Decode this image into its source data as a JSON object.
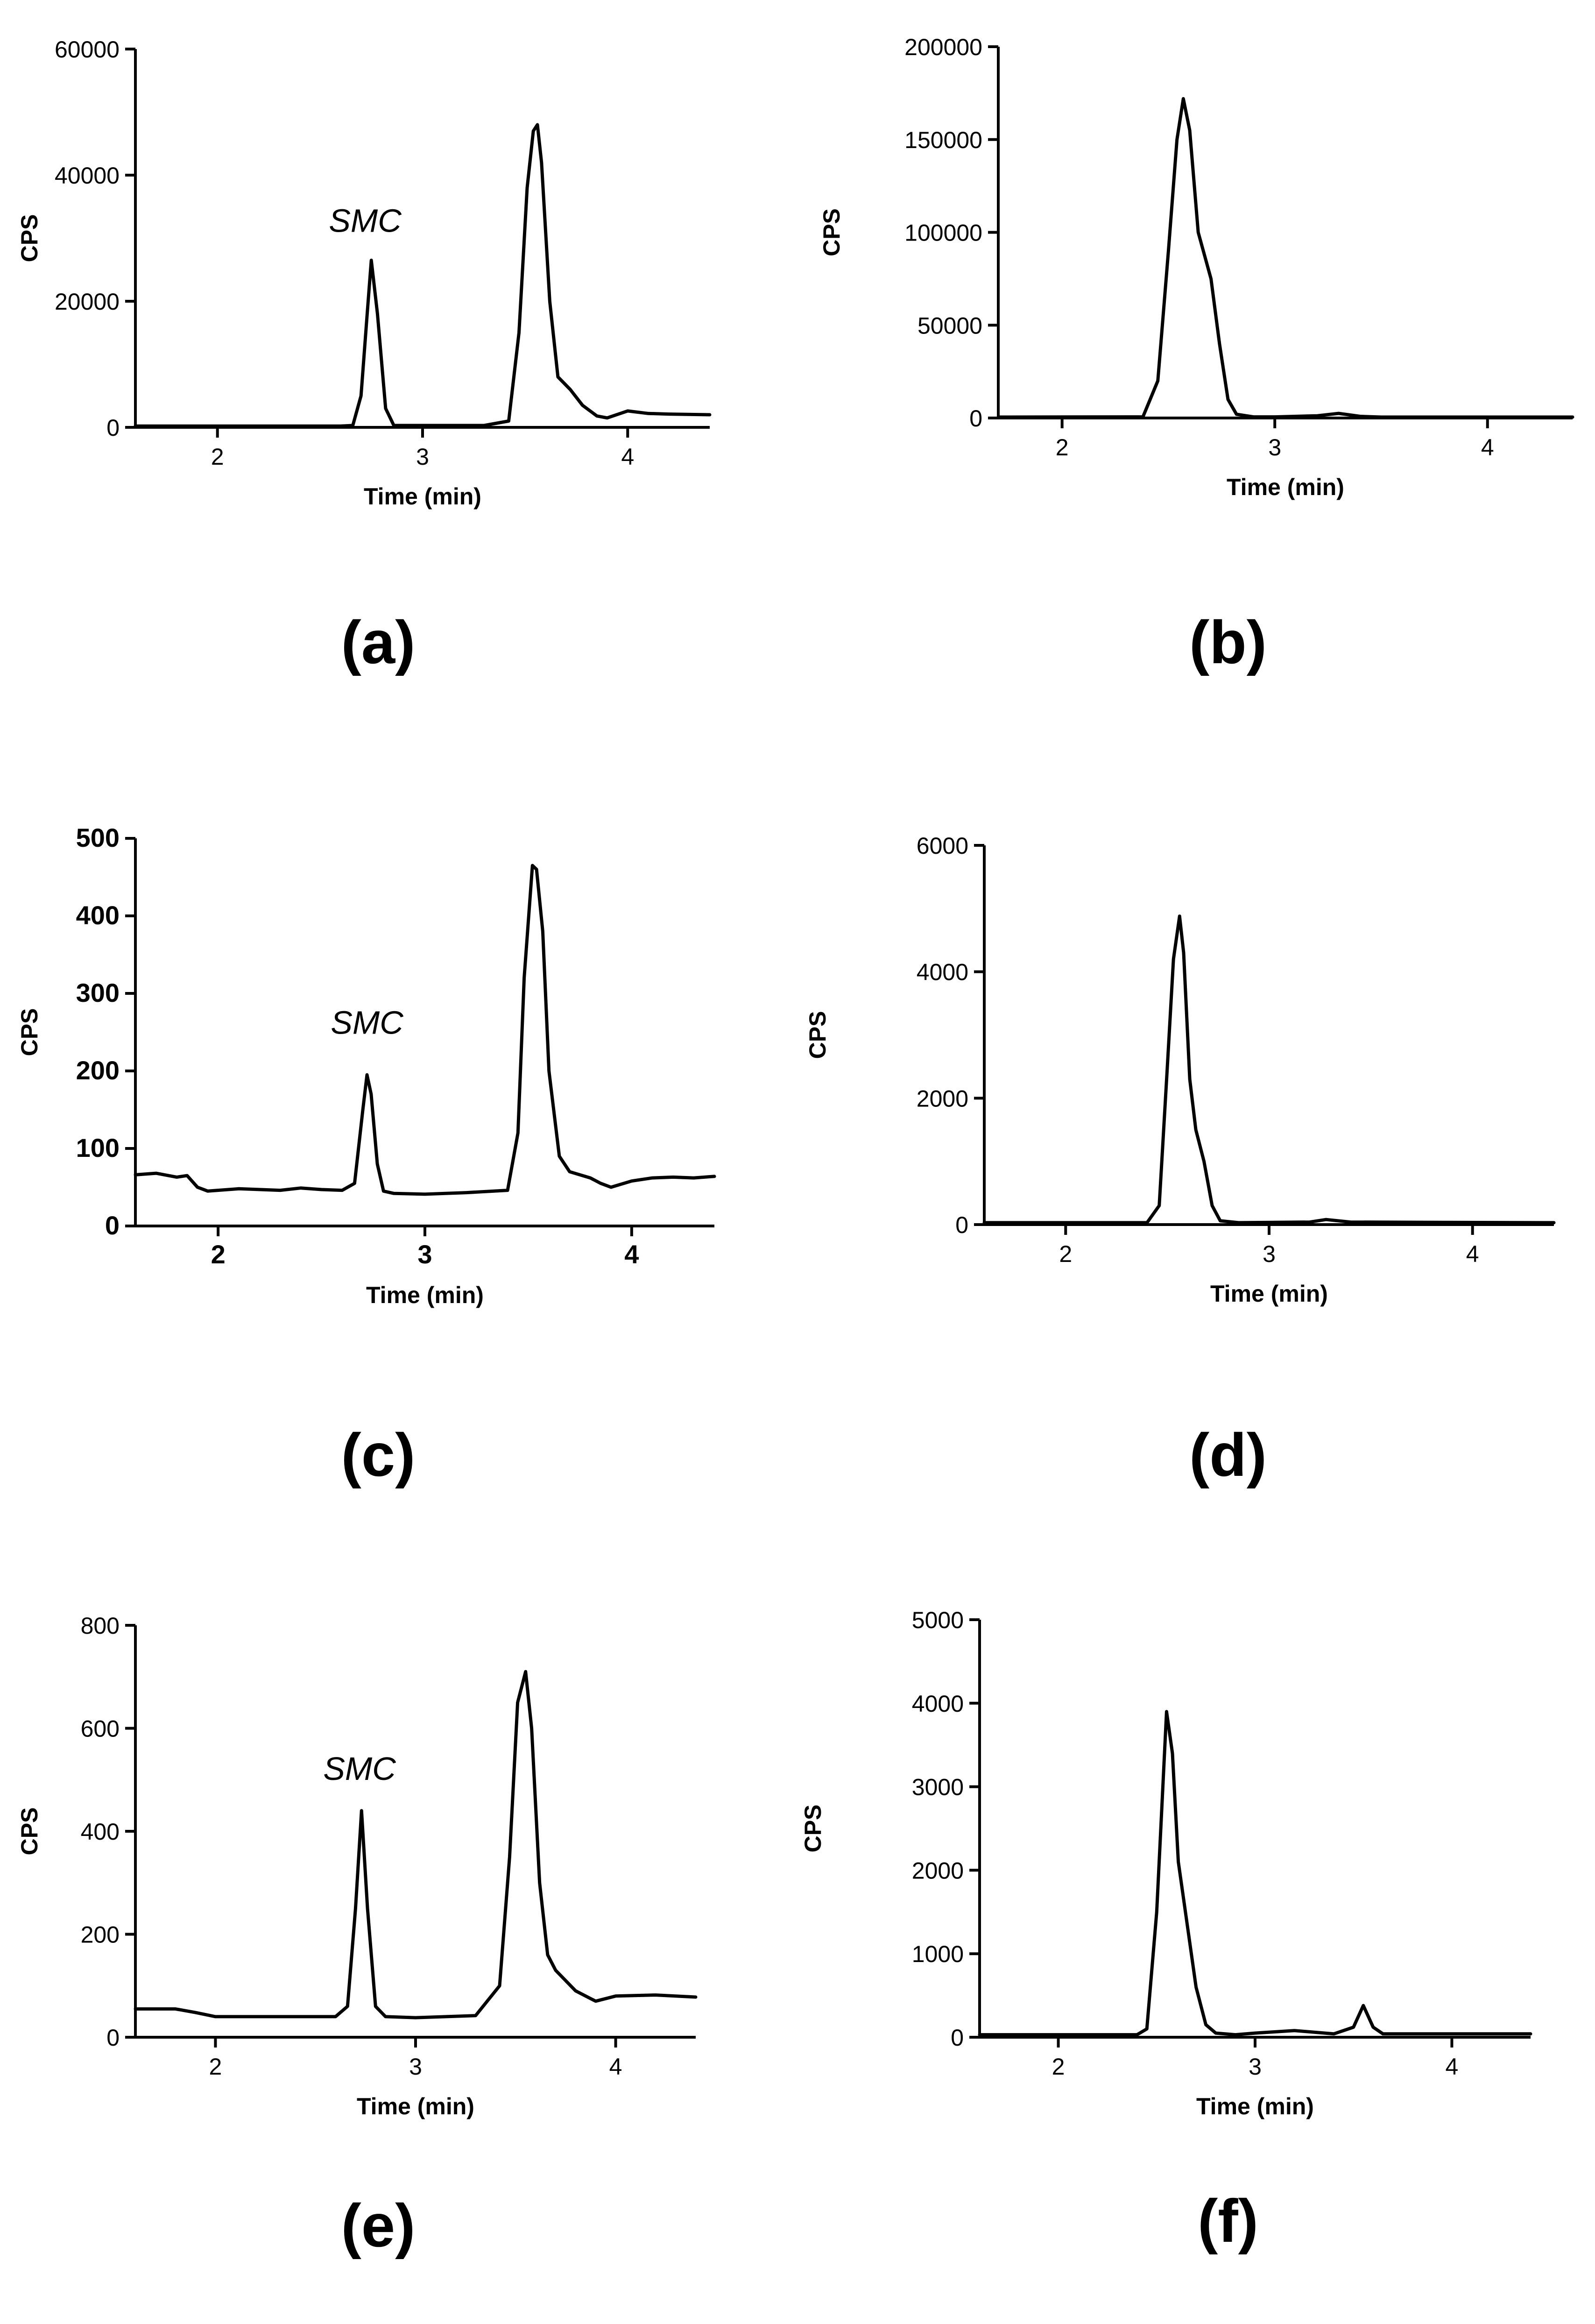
{
  "chart_data": [
    {
      "type": "line",
      "panel": "(a)",
      "xlabel": "Time (min)",
      "ylabel": "CPS",
      "xlim": [
        1.6,
        4.4
      ],
      "ylim": [
        0,
        60000
      ],
      "xticks": [
        "2",
        "3",
        "4"
      ],
      "yticks": [
        "0",
        "20000",
        "40000",
        "60000"
      ],
      "annotations": [
        {
          "text": "SMC",
          "x": 2.72,
          "y": 31000
        }
      ],
      "series": [
        {
          "name": "trace",
          "x": [
            1.6,
            2.6,
            2.66,
            2.7,
            2.73,
            2.75,
            2.78,
            2.82,
            2.86,
            3.3,
            3.42,
            3.47,
            3.51,
            3.54,
            3.56,
            3.58,
            3.62,
            3.66,
            3.72,
            3.78,
            3.85,
            3.9,
            4.0,
            4.1,
            4.2,
            4.4
          ],
          "y": [
            200,
            200,
            300,
            5000,
            18000,
            26500,
            18000,
            3000,
            300,
            300,
            1000,
            15000,
            38000,
            47000,
            48000,
            42000,
            20000,
            8000,
            6000,
            3500,
            1800,
            1500,
            2600,
            2200,
            2100,
            2000
          ]
        }
      ]
    },
    {
      "type": "line",
      "panel": "(b)",
      "xlabel": "Time (min)",
      "ylabel": "CPS",
      "xlim": [
        1.7,
        4.4
      ],
      "ylim": [
        0,
        200000
      ],
      "xticks": [
        "2",
        "3",
        "4"
      ],
      "yticks": [
        "0",
        "50000",
        "100000",
        "150000",
        "200000"
      ],
      "series": [
        {
          "name": "trace",
          "x": [
            1.7,
            2.38,
            2.45,
            2.5,
            2.54,
            2.57,
            2.6,
            2.64,
            2.7,
            2.74,
            2.78,
            2.82,
            2.9,
            3.0,
            3.2,
            3.3,
            3.4,
            3.5,
            4.4
          ],
          "y": [
            500,
            600,
            20000,
            90000,
            150000,
            172000,
            155000,
            100000,
            75000,
            40000,
            10000,
            2000,
            600,
            600,
            1200,
            2500,
            900,
            500,
            500
          ]
        }
      ]
    },
    {
      "type": "line",
      "panel": "(c)",
      "xlabel": "Time (min)",
      "ylabel": "CPS",
      "xlim": [
        1.6,
        4.4
      ],
      "ylim": [
        0,
        500
      ],
      "xticks": [
        "2",
        "3",
        "4"
      ],
      "yticks": [
        "0",
        "100",
        "200",
        "300",
        "400",
        "500"
      ],
      "annotations": [
        {
          "text": "SMC",
          "x": 2.72,
          "y": 248
        }
      ],
      "series": [
        {
          "name": "trace",
          "x": [
            1.6,
            1.7,
            1.8,
            1.85,
            1.9,
            1.95,
            2.1,
            2.3,
            2.4,
            2.5,
            2.6,
            2.66,
            2.7,
            2.72,
            2.74,
            2.77,
            2.8,
            2.85,
            3.0,
            3.2,
            3.4,
            3.45,
            3.48,
            3.52,
            3.54,
            3.57,
            3.6,
            3.65,
            3.7,
            3.8,
            3.85,
            3.9,
            4.0,
            4.1,
            4.2,
            4.3,
            4.4
          ],
          "y": [
            66,
            68,
            63,
            65,
            50,
            45,
            48,
            46,
            49,
            47,
            46,
            55,
            150,
            195,
            170,
            80,
            45,
            42,
            41,
            43,
            46,
            120,
            320,
            465,
            460,
            380,
            200,
            90,
            70,
            62,
            55,
            50,
            58,
            62,
            63,
            62,
            64
          ]
        }
      ]
    },
    {
      "type": "line",
      "panel": "(d)",
      "xlabel": "Time (min)",
      "ylabel": "CPS",
      "xlim": [
        1.6,
        4.4
      ],
      "ylim": [
        0,
        6000
      ],
      "xticks": [
        "2",
        "3",
        "4"
      ],
      "yticks": [
        "0",
        "2000",
        "4000",
        "6000"
      ],
      "series": [
        {
          "name": "trace",
          "x": [
            1.6,
            2.4,
            2.46,
            2.5,
            2.53,
            2.56,
            2.58,
            2.61,
            2.64,
            2.68,
            2.72,
            2.76,
            2.85,
            3.2,
            3.28,
            3.4,
            4.4
          ],
          "y": [
            30,
            30,
            300,
            2500,
            4200,
            4880,
            4300,
            2300,
            1500,
            1000,
            300,
            60,
            30,
            40,
            80,
            40,
            30
          ]
        }
      ]
    },
    {
      "type": "line",
      "panel": "(e)",
      "xlabel": "Time (min)",
      "ylabel": "CPS",
      "xlim": [
        1.6,
        4.4
      ],
      "ylim": [
        0,
        800
      ],
      "xticks": [
        "2",
        "3",
        "4"
      ],
      "yticks": [
        "0",
        "200",
        "400",
        "600",
        "800"
      ],
      "annotations": [
        {
          "text": "SMC",
          "x": 2.72,
          "y": 500
        }
      ],
      "series": [
        {
          "name": "trace",
          "x": [
            1.6,
            1.8,
            1.9,
            2.0,
            2.2,
            2.4,
            2.6,
            2.66,
            2.7,
            2.73,
            2.76,
            2.8,
            2.85,
            3.0,
            3.3,
            3.42,
            3.47,
            3.51,
            3.55,
            3.58,
            3.62,
            3.66,
            3.7,
            3.8,
            3.9,
            4.0,
            4.2,
            4.4
          ],
          "y": [
            55,
            55,
            48,
            40,
            40,
            40,
            40,
            60,
            250,
            440,
            250,
            60,
            40,
            38,
            42,
            100,
            350,
            650,
            710,
            600,
            300,
            160,
            130,
            90,
            70,
            80,
            82,
            78
          ]
        }
      ]
    },
    {
      "type": "line",
      "panel": "(f)",
      "xlabel": "Time (min)",
      "ylabel": "CPS",
      "xlim": [
        1.6,
        4.4
      ],
      "ylim": [
        0,
        5000
      ],
      "xticks": [
        "2",
        "3",
        "4"
      ],
      "yticks": [
        "0",
        "1000",
        "2000",
        "3000",
        "4000",
        "5000"
      ],
      "series": [
        {
          "name": "trace",
          "x": [
            1.6,
            2.4,
            2.45,
            2.5,
            2.55,
            2.58,
            2.61,
            2.64,
            2.7,
            2.75,
            2.8,
            2.9,
            3.0,
            3.2,
            3.4,
            3.5,
            3.55,
            3.6,
            3.65,
            4.0,
            4.4
          ],
          "y": [
            30,
            30,
            100,
            1500,
            3900,
            3400,
            2100,
            1600,
            600,
            150,
            50,
            30,
            50,
            80,
            40,
            120,
            380,
            120,
            40,
            40,
            40
          ]
        }
      ]
    }
  ],
  "panel_labels": [
    "(a)",
    "(b)",
    "(c)",
    "(d)",
    "(e)",
    "(f)"
  ]
}
